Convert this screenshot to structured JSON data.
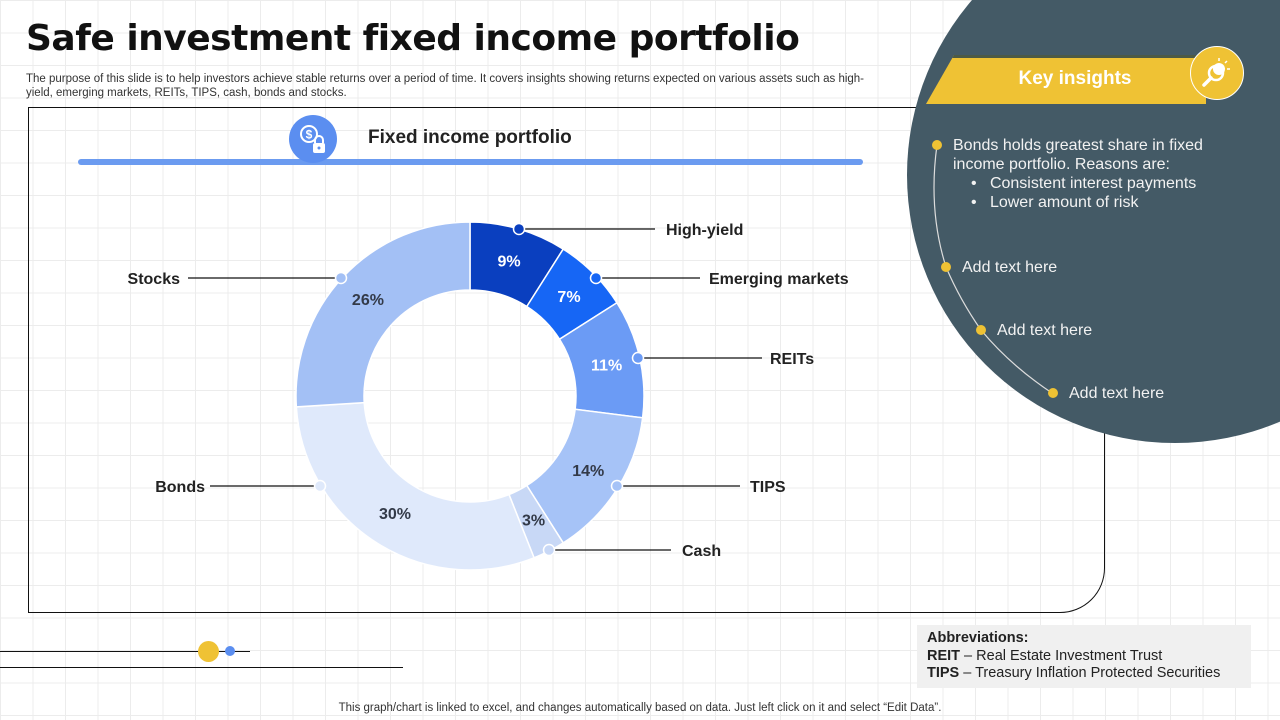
{
  "title": "Safe investment fixed income portfolio",
  "description": "The purpose of this slide is to help investors achieve stable returns over a period of time. It covers insights showing returns expected on various assets such as high-yield, emerging markets, REITs, TIPS, cash, bonds and stocks.",
  "panel": {
    "title": "Fixed income portfolio",
    "icon": "dollar-lock-icon"
  },
  "chart_data": {
    "type": "pie",
    "donut": true,
    "title": "",
    "categories": [
      "High-yield",
      "Emerging markets",
      "REITs",
      "TIPS",
      "Cash",
      "Bonds",
      "Stocks"
    ],
    "values": [
      9,
      7,
      11,
      14,
      3,
      30,
      26
    ],
    "labels": [
      "9%",
      "7%",
      "11%",
      "14%",
      "3%",
      "30%",
      "26%"
    ],
    "colors": [
      "#0a3fbf",
      "#1666f5",
      "#6b9bf5",
      "#a6c3f7",
      "#c8d8f6",
      "#dfe9fb",
      "#a3c0f5"
    ],
    "label_colors": [
      "#ffffff",
      "#ffffff",
      "#ffffff",
      "#333a48",
      "#333a48",
      "#333a48",
      "#333a48"
    ],
    "start": "top",
    "direction": "clockwise"
  },
  "insights": {
    "header": "Key insights",
    "icon": "bulb-magnifier-icon",
    "main": "Bonds holds greatest share in fixed income portfolio. Reasons are:",
    "bullets": [
      "Consistent interest payments",
      "Lower amount of risk"
    ],
    "items": [
      "Add text here",
      "Add text here",
      "Add text here"
    ],
    "accent": "#efc234",
    "background": "#445a66"
  },
  "abbreviations": {
    "heading": "Abbreviations:",
    "rows": [
      {
        "term": "REIT",
        "meaning": " – Real Estate Investment Trust"
      },
      {
        "term": "TIPS",
        "meaning": " – Treasury Inflation  Protected Securities"
      }
    ]
  },
  "footer": "This graph/chart is linked to excel,  and changes automatically based on data. Just left click on it and select “Edit Data”."
}
